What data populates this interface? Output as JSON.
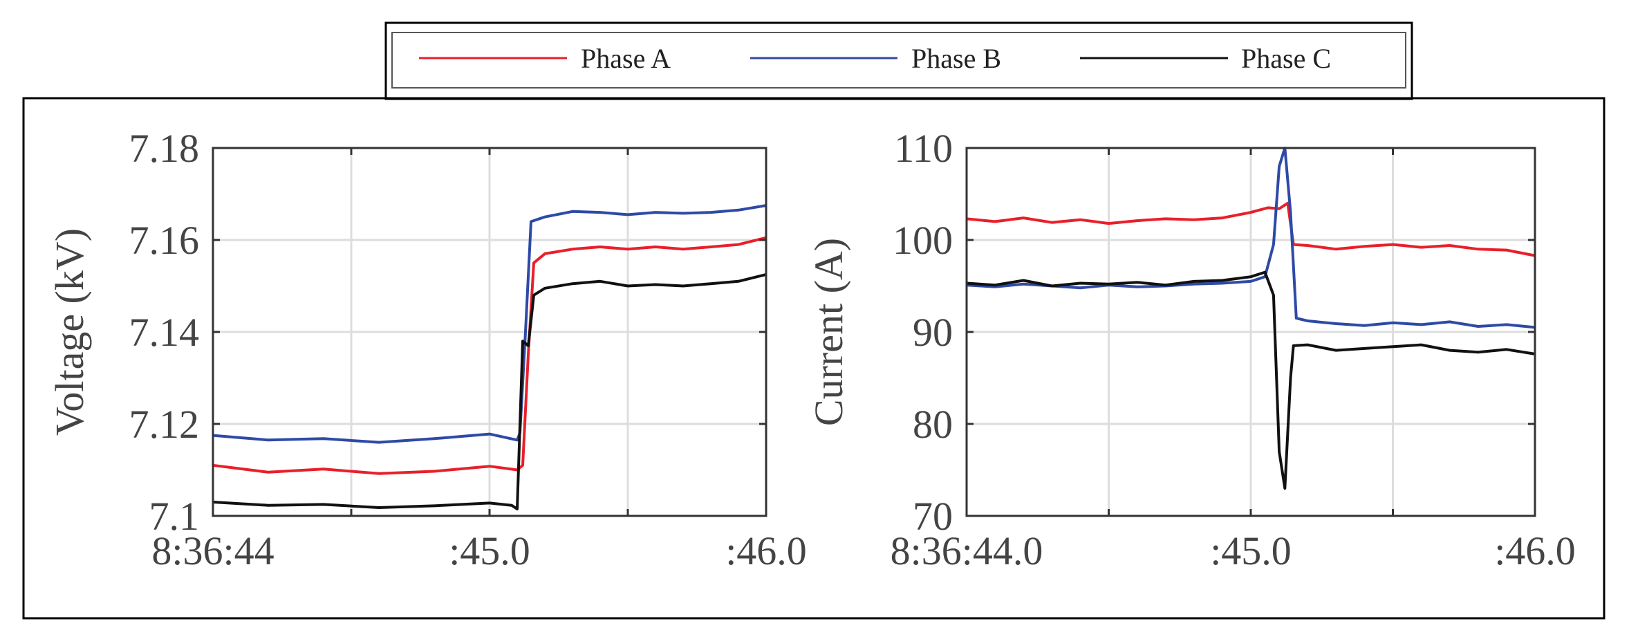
{
  "legend": {
    "items": [
      {
        "name": "Phase A",
        "color": "#e8202a"
      },
      {
        "name": "Phase B",
        "color": "#2e4aa6"
      },
      {
        "name": "Phase C",
        "color": "#111111"
      }
    ]
  },
  "chart_data": [
    {
      "type": "line",
      "title": "",
      "xlabel": "",
      "ylabel": "Voltage (kV)",
      "xlim": [
        0,
        2.0
      ],
      "ylim": [
        7.1,
        7.18
      ],
      "xticks": [
        0,
        1.0,
        2.0
      ],
      "xtick_labels": [
        "8:36:44",
        ":45.0",
        ":46.0"
      ],
      "yticks": [
        7.1,
        7.12,
        7.14,
        7.16,
        7.18
      ],
      "ytick_labels": [
        "7.1",
        "7.12",
        "7.14",
        "7.16",
        "7.18"
      ],
      "grid": true,
      "series": [
        {
          "name": "Phase A",
          "color": "#e8202a",
          "x": [
            0,
            0.2,
            0.4,
            0.6,
            0.8,
            1.0,
            1.1,
            1.12,
            1.14,
            1.16,
            1.2,
            1.3,
            1.4,
            1.5,
            1.6,
            1.7,
            1.8,
            1.9,
            2.0
          ],
          "y": [
            7.111,
            7.1095,
            7.1102,
            7.1092,
            7.1097,
            7.1108,
            7.11,
            7.111,
            7.135,
            7.155,
            7.157,
            7.158,
            7.1585,
            7.158,
            7.1585,
            7.158,
            7.1585,
            7.159,
            7.1605
          ]
        },
        {
          "name": "Phase B",
          "color": "#2e4aa6",
          "x": [
            0,
            0.2,
            0.4,
            0.6,
            0.8,
            1.0,
            1.1,
            1.11,
            1.13,
            1.15,
            1.2,
            1.3,
            1.4,
            1.5,
            1.6,
            1.7,
            1.8,
            1.9,
            2.0
          ],
          "y": [
            7.1175,
            7.1165,
            7.1168,
            7.116,
            7.1168,
            7.1178,
            7.1165,
            7.118,
            7.14,
            7.164,
            7.165,
            7.1662,
            7.166,
            7.1655,
            7.166,
            7.1658,
            7.166,
            7.1665,
            7.1675
          ]
        },
        {
          "name": "Phase C",
          "color": "#111111",
          "x": [
            0,
            0.2,
            0.4,
            0.6,
            0.8,
            1.0,
            1.08,
            1.1,
            1.12,
            1.14,
            1.16,
            1.2,
            1.3,
            1.4,
            1.5,
            1.6,
            1.7,
            1.8,
            1.9,
            2.0
          ],
          "y": [
            7.103,
            7.1023,
            7.1025,
            7.1018,
            7.1022,
            7.1028,
            7.1023,
            7.1015,
            7.138,
            7.137,
            7.148,
            7.1495,
            7.1505,
            7.151,
            7.15,
            7.1503,
            7.15,
            7.1505,
            7.151,
            7.1525
          ]
        }
      ]
    },
    {
      "type": "line",
      "title": "",
      "xlabel": "",
      "ylabel": "Current (A)",
      "xlim": [
        0,
        2.0
      ],
      "ylim": [
        70,
        110
      ],
      "xticks": [
        0,
        1.0,
        2.0
      ],
      "xtick_labels": [
        "8:36:44.0",
        ":45.0",
        ":46.0"
      ],
      "yticks": [
        70,
        80,
        90,
        100,
        110
      ],
      "ytick_labels": [
        "70",
        "80",
        "90",
        "100",
        "110"
      ],
      "grid": true,
      "series": [
        {
          "name": "Phase A",
          "color": "#e8202a",
          "x": [
            0,
            0.1,
            0.2,
            0.3,
            0.4,
            0.5,
            0.6,
            0.7,
            0.8,
            0.9,
            1.0,
            1.06,
            1.1,
            1.13,
            1.15,
            1.2,
            1.3,
            1.4,
            1.5,
            1.6,
            1.7,
            1.8,
            1.9,
            2.0
          ],
          "y": [
            102.3,
            102.0,
            102.4,
            101.9,
            102.2,
            101.8,
            102.1,
            102.3,
            102.2,
            102.4,
            103.0,
            103.5,
            103.4,
            104.0,
            99.5,
            99.4,
            99.0,
            99.3,
            99.5,
            99.2,
            99.4,
            99.0,
            98.9,
            98.3
          ]
        },
        {
          "name": "Phase B",
          "color": "#2e4aa6",
          "x": [
            0,
            0.1,
            0.2,
            0.3,
            0.4,
            0.5,
            0.6,
            0.7,
            0.8,
            0.9,
            1.0,
            1.05,
            1.08,
            1.1,
            1.12,
            1.14,
            1.16,
            1.2,
            1.3,
            1.4,
            1.5,
            1.6,
            1.7,
            1.8,
            1.9,
            2.0
          ],
          "y": [
            95.1,
            94.9,
            95.2,
            95.0,
            94.8,
            95.1,
            94.9,
            95.0,
            95.2,
            95.3,
            95.5,
            96.0,
            99.5,
            108.0,
            110.0,
            103.0,
            91.5,
            91.2,
            90.9,
            90.7,
            91.0,
            90.8,
            91.1,
            90.6,
            90.8,
            90.5
          ]
        },
        {
          "name": "Phase C",
          "color": "#111111",
          "x": [
            0,
            0.1,
            0.2,
            0.3,
            0.4,
            0.5,
            0.6,
            0.7,
            0.8,
            0.9,
            1.0,
            1.05,
            1.08,
            1.1,
            1.12,
            1.14,
            1.15,
            1.2,
            1.3,
            1.4,
            1.5,
            1.6,
            1.7,
            1.8,
            1.9,
            2.0
          ],
          "y": [
            95.3,
            95.1,
            95.6,
            95.0,
            95.3,
            95.2,
            95.4,
            95.1,
            95.5,
            95.6,
            96.0,
            96.5,
            94.0,
            77.0,
            73.0,
            85.0,
            88.5,
            88.6,
            88.0,
            88.2,
            88.4,
            88.6,
            88.0,
            87.8,
            88.1,
            87.6
          ]
        }
      ]
    }
  ]
}
